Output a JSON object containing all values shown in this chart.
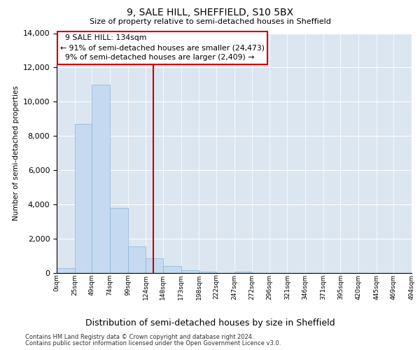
{
  "title1": "9, SALE HILL, SHEFFIELD, S10 5BX",
  "title2": "Size of property relative to semi-detached houses in Sheffield",
  "xlabel": "Distribution of semi-detached houses by size in Sheffield",
  "ylabel": "Number of semi-detached properties",
  "annotation_line1": "9 SALE HILL: 134sqm",
  "annotation_line2": "← 91% of semi-detached houses are smaller (24,473)",
  "annotation_line3": "9% of semi-detached houses are larger (2,409) →",
  "property_size_sqm": 134,
  "footer1": "Contains HM Land Registry data © Crown copyright and database right 2024.",
  "footer2": "Contains public sector information licensed under the Open Government Licence v3.0.",
  "bin_edges": [
    0,
    25,
    49,
    74,
    99,
    124,
    148,
    173,
    198,
    222,
    247,
    272,
    296,
    321,
    346,
    371,
    395,
    420,
    445,
    469,
    494
  ],
  "bin_labels": [
    "0sqm",
    "25sqm",
    "49sqm",
    "74sqm",
    "99sqm",
    "124sqm",
    "148sqm",
    "173sqm",
    "198sqm",
    "222sqm",
    "247sqm",
    "272sqm",
    "296sqm",
    "321sqm",
    "346sqm",
    "371sqm",
    "395sqm",
    "420sqm",
    "445sqm",
    "469sqm",
    "494sqm"
  ],
  "counts": [
    300,
    8700,
    11000,
    3800,
    1550,
    850,
    400,
    150,
    100,
    0,
    100,
    0,
    0,
    0,
    0,
    0,
    0,
    0,
    0,
    0
  ],
  "bar_color": "#c5d9f1",
  "bar_edge_color": "#8ab4d4",
  "vline_color": "#cc0000",
  "axes_bg_color": "#dce6f1",
  "grid_color": "#ffffff",
  "ylim": [
    0,
    14000
  ],
  "yticks": [
    0,
    2000,
    4000,
    6000,
    8000,
    10000,
    12000,
    14000
  ]
}
